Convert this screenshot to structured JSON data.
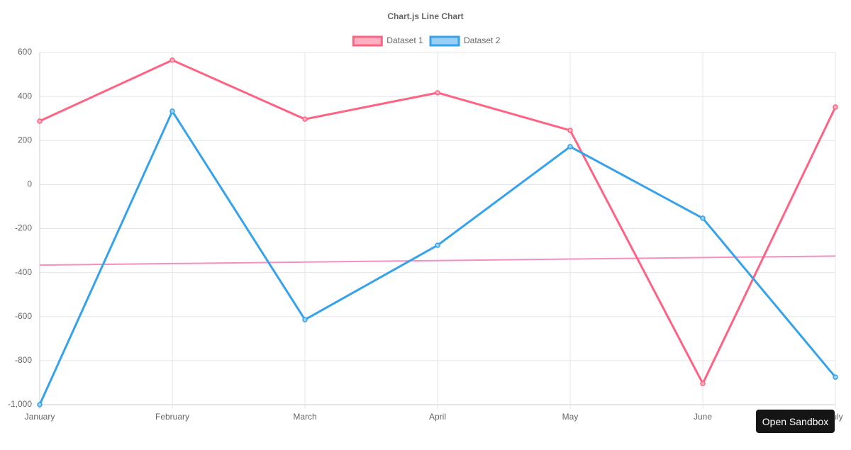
{
  "chart_data": {
    "type": "line",
    "title": "Chart.js Line Chart",
    "categories": [
      "January",
      "February",
      "March",
      "April",
      "May",
      "June",
      "July"
    ],
    "series": [
      {
        "name": "Dataset 1",
        "color": "#ff6384",
        "fill": "#ffb1c1",
        "values": [
          288,
          565,
          297,
          417,
          246,
          -904,
          352
        ]
      },
      {
        "name": "Dataset 2",
        "color": "#36a2eb",
        "fill": "#9ad0f5",
        "values": [
          -1000,
          333,
          -614,
          -276,
          172,
          -153,
          -875
        ]
      }
    ],
    "trendline": {
      "color": "#f48fc1",
      "values": [
        -366,
        -325
      ]
    },
    "ylim": [
      -1000,
      600
    ],
    "yticks": [
      {
        "value": -1000,
        "label": "-1,000"
      },
      -800,
      -600,
      -400,
      -200,
      0,
      200,
      400,
      600
    ],
    "grid": true,
    "legend": "top"
  },
  "ui": {
    "button": "Open Sandbox"
  }
}
